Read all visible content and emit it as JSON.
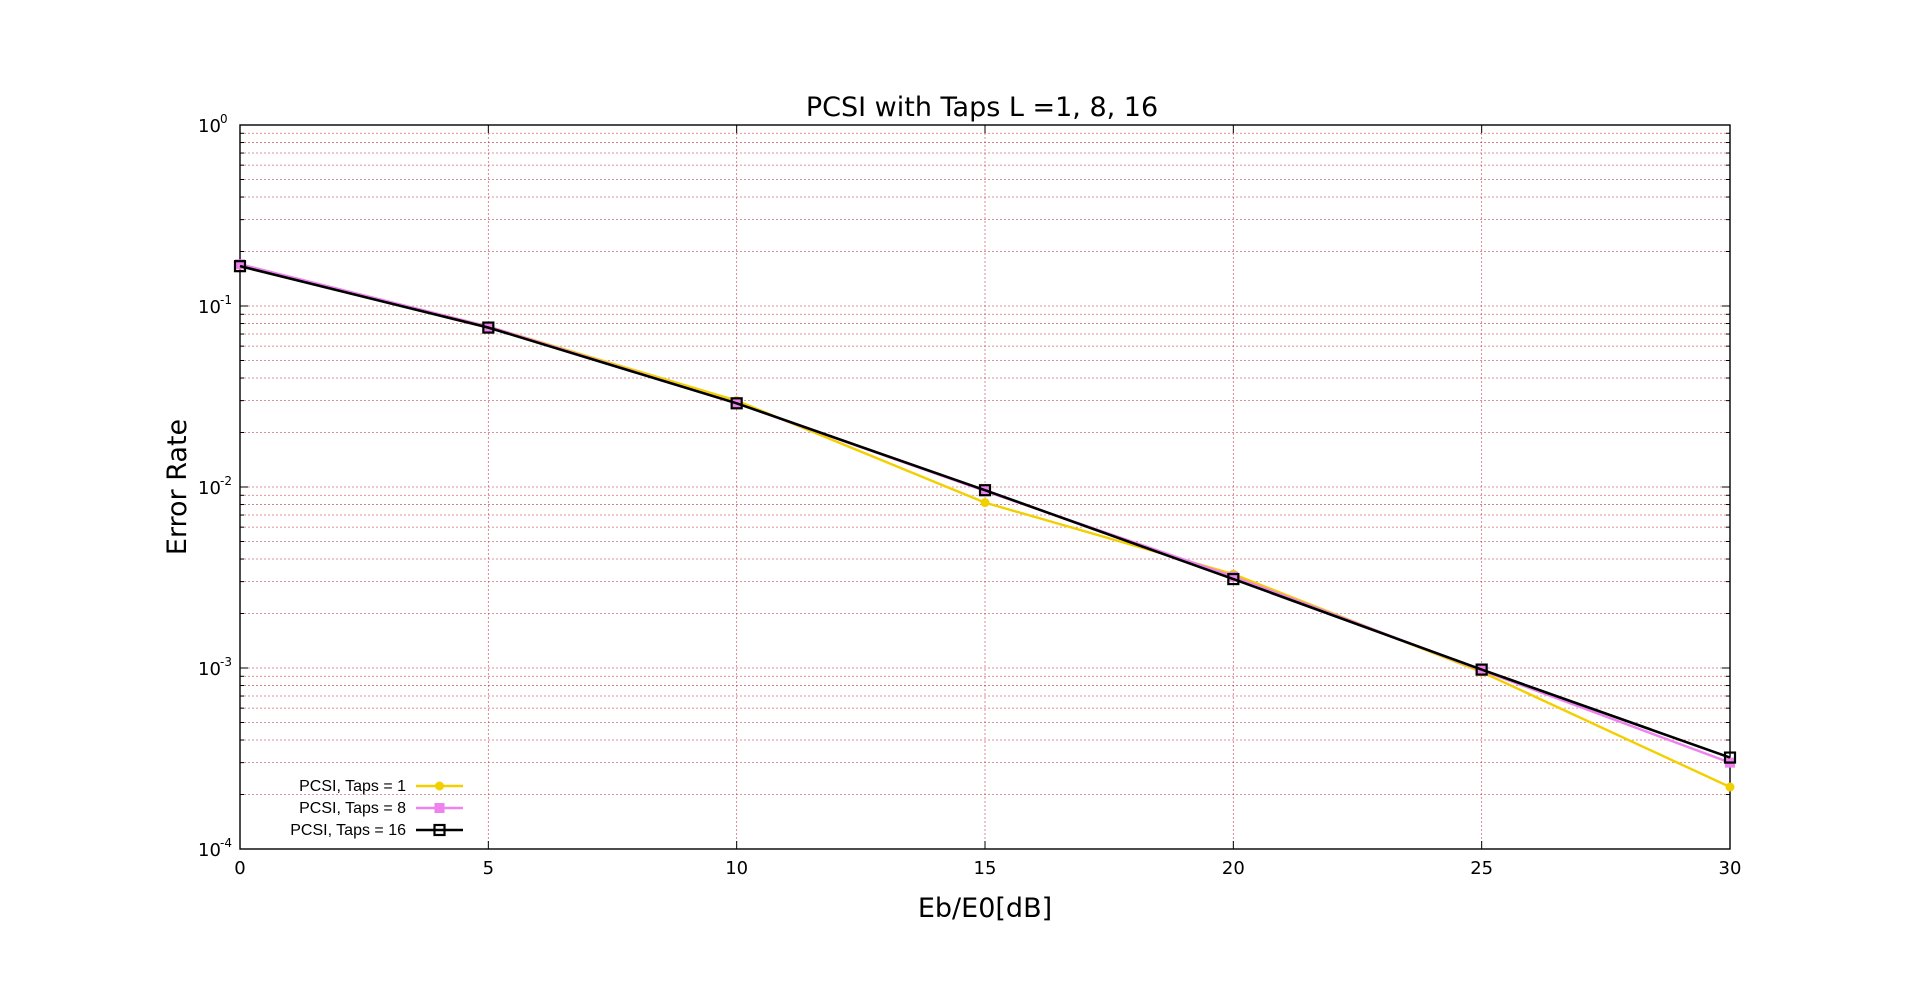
{
  "chart_data": {
    "type": "line",
    "title": "PCSI  with  Taps L =1, 8, 16",
    "xlabel": "Eb/E0[dB]",
    "ylabel": "Error Rate",
    "x": [
      0,
      5,
      10,
      15,
      20,
      25,
      30
    ],
    "xlim": [
      0,
      30
    ],
    "ylim": [
      0.0001,
      1
    ],
    "yscale": "log",
    "x_ticks": [
      "0",
      "5",
      "10",
      "15",
      "20",
      "25",
      "30"
    ],
    "y_ticks": [
      {
        "base": "10",
        "exp": "0",
        "value": 1
      },
      {
        "base": "10",
        "exp": "-1",
        "value": 0.1
      },
      {
        "base": "10",
        "exp": "-2",
        "value": 0.01
      },
      {
        "base": "10",
        "exp": "-3",
        "value": 0.001
      },
      {
        "base": "10",
        "exp": "-4",
        "value": 0.0001
      }
    ],
    "grid": true,
    "legend_position": "bottom-left",
    "series": [
      {
        "name": "PCSI, Taps = 1",
        "color": "#f2d000",
        "marker": "circle",
        "values": [
          0.168,
          0.077,
          0.03,
          0.0082,
          0.0033,
          0.00095,
          0.00022
        ]
      },
      {
        "name": "PCSI, Taps = 8",
        "color": "#ee82ee",
        "marker": "square-filled",
        "values": [
          0.17,
          0.077,
          0.029,
          0.0095,
          0.0032,
          0.00097,
          0.0003
        ]
      },
      {
        "name": "PCSI, Taps = 16",
        "color": "#000000",
        "marker": "square-open",
        "values": [
          0.166,
          0.076,
          0.029,
          0.0096,
          0.0031,
          0.00098,
          0.00032
        ]
      }
    ]
  }
}
